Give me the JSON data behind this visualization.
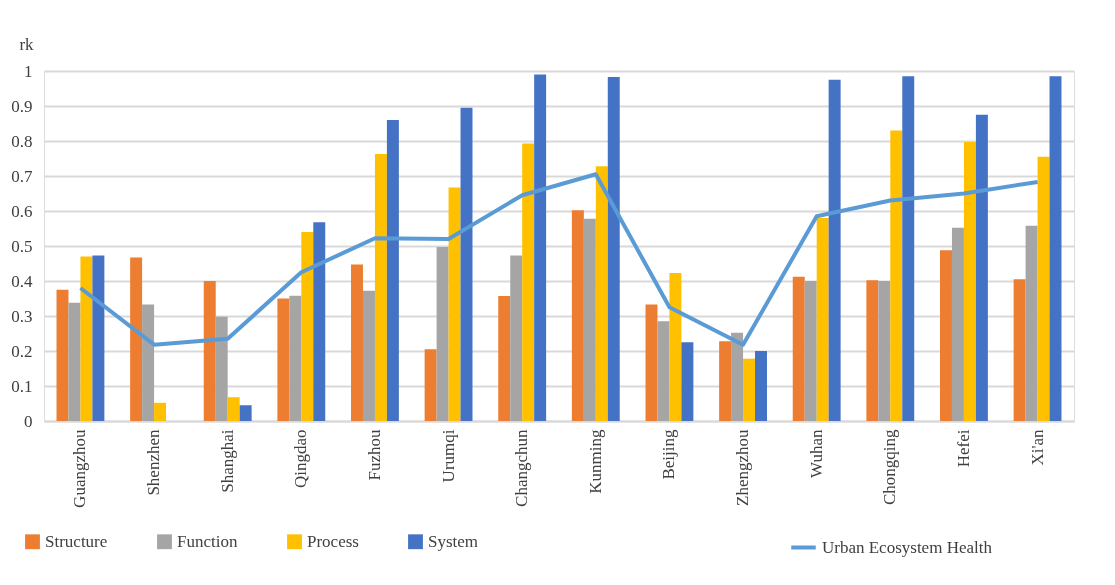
{
  "chart_data": {
    "type": "bar",
    "ylabel": "rk",
    "categories": [
      "Guangzhou",
      "Shenzhen",
      "Shanghai",
      "Qingdao",
      "Fuzhou",
      "Urumqi",
      "Changchun",
      "Kunming",
      "Beijing",
      "Zhengzhou",
      "Wuhan",
      "Chongqing",
      "Hefei",
      "Xi'an"
    ],
    "series": [
      {
        "name": "Structure",
        "color": "#ed7d31",
        "values": [
          0.375,
          0.467,
          0.4,
          0.35,
          0.447,
          0.205,
          0.357,
          0.602,
          0.333,
          0.228,
          0.412,
          0.402,
          0.488,
          0.405
        ]
      },
      {
        "name": "Function",
        "color": "#a5a5a5",
        "values": [
          0.338,
          0.333,
          0.298,
          0.358,
          0.372,
          0.497,
          0.473,
          0.578,
          0.285,
          0.252,
          0.4,
          0.4,
          0.552,
          0.558
        ]
      },
      {
        "name": "Process",
        "color": "#ffc000",
        "values": [
          0.47,
          0.052,
          0.068,
          0.54,
          0.763,
          0.667,
          0.793,
          0.728,
          0.423,
          0.178,
          0.58,
          0.83,
          0.797,
          0.755
        ]
      },
      {
        "name": "System",
        "color": "#4472c4",
        "values": [
          0.473,
          0,
          0.045,
          0.568,
          0.86,
          0.895,
          0.99,
          0.983,
          0.225,
          0.2,
          0.975,
          0.985,
          0.875,
          0.985
        ]
      },
      {
        "name": "Urban Ecosystem Health",
        "type": "line",
        "color": "#5b9bd5",
        "values": [
          0.38,
          0.218,
          0.235,
          0.425,
          0.522,
          0.52,
          0.645,
          0.705,
          0.325,
          0.218,
          0.585,
          0.63,
          0.65,
          0.683
        ]
      }
    ],
    "ylim": [
      0,
      1
    ],
    "yticks": [
      0,
      0.1,
      0.2,
      0.3,
      0.4,
      0.5,
      0.6,
      0.7,
      0.8,
      0.9,
      1
    ],
    "grid": "y",
    "legend": "bottom"
  }
}
